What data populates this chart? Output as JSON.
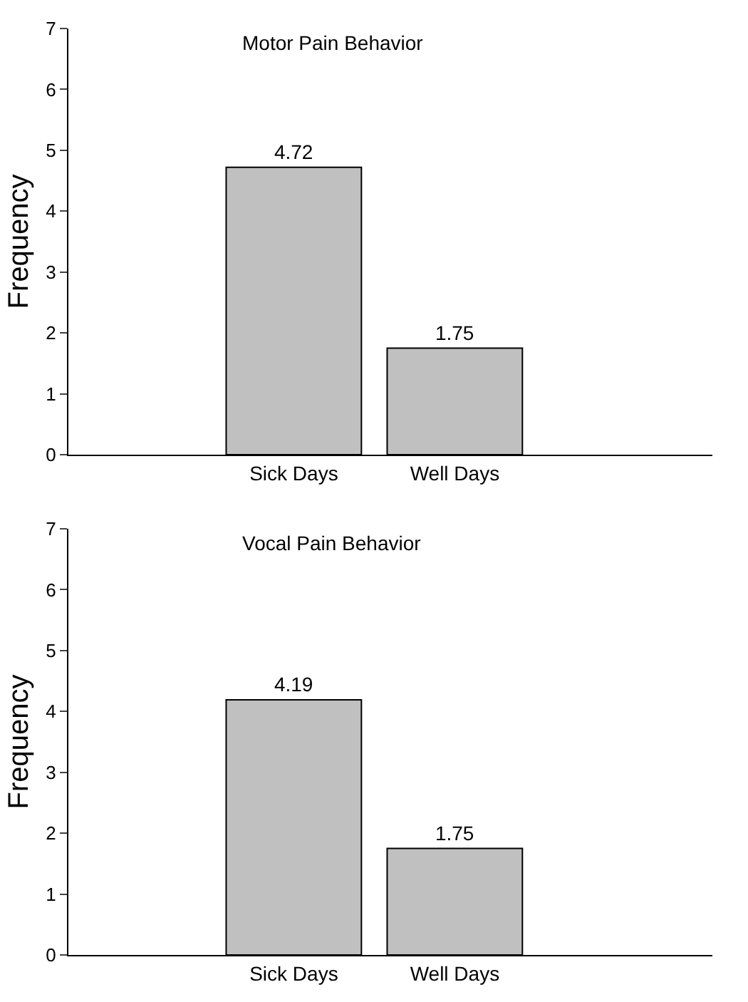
{
  "chart_data": [
    {
      "type": "bar",
      "title": "Motor Pain Behavior",
      "ylabel": "Frequency",
      "categories": [
        "Sick Days",
        "Well Days"
      ],
      "values": [
        4.72,
        1.75
      ],
      "color": "#c0c0c0",
      "ylim": [
        0,
        7
      ],
      "yticks": [
        0,
        1,
        2,
        3,
        4,
        5,
        6,
        7
      ],
      "data_labels": true
    },
    {
      "type": "bar",
      "title": "Vocal Pain Behavior",
      "ylabel": "Frequency",
      "categories": [
        "Sick Days",
        "Well Days"
      ],
      "values": [
        4.19,
        1.75
      ],
      "color": "#c0c0c0",
      "ylim": [
        0,
        7
      ],
      "yticks": [
        0,
        1,
        2,
        3,
        4,
        5,
        6,
        7
      ],
      "data_labels": true
    }
  ]
}
